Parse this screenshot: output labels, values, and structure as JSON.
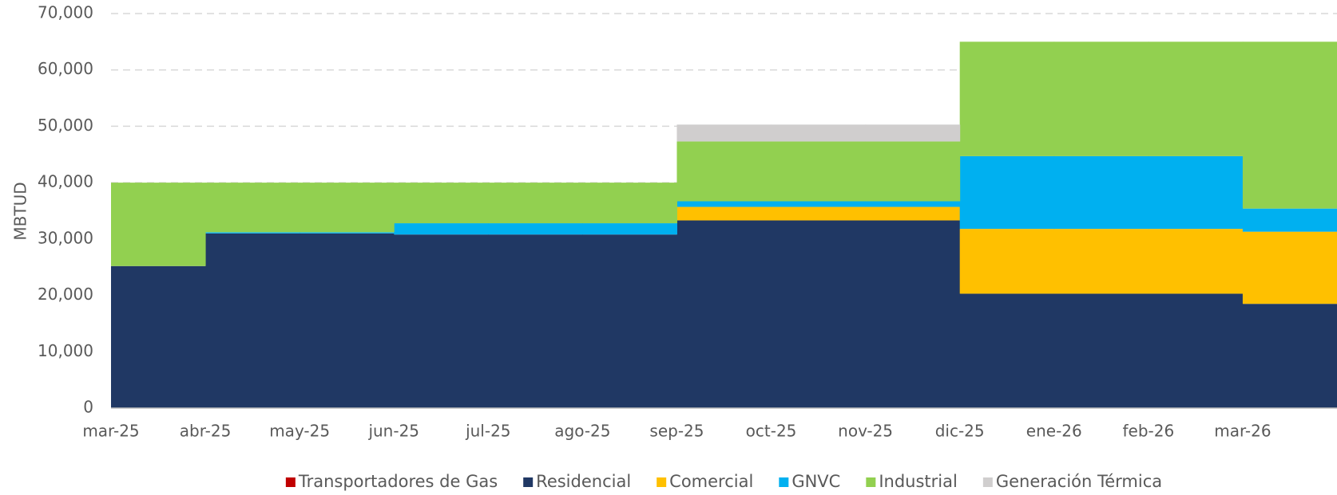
{
  "chart_data": {
    "type": "stacked-step-area",
    "y_label": "MBTUD",
    "categories": [
      "mar-25",
      "abr-25",
      "may-25",
      "jun-25",
      "jul-25",
      "ago-25",
      "sep-25",
      "oct-25",
      "nov-25",
      "dic-25",
      "ene-26",
      "feb-26",
      "mar-26"
    ],
    "series": [
      {
        "name": "Transportadores de Gas",
        "color": "#c00000",
        "values": [
          0,
          0,
          0,
          0,
          0,
          0,
          0,
          0,
          0,
          0,
          0,
          0,
          0
        ]
      },
      {
        "name": "Residencial",
        "color": "#203864",
        "values": [
          25200,
          31000,
          31000,
          30800,
          30800,
          30800,
          33300,
          33300,
          33300,
          20300,
          20300,
          20300,
          18500
        ]
      },
      {
        "name": "Comercial",
        "color": "#ffc000",
        "values": [
          0,
          0,
          0,
          0,
          0,
          0,
          2400,
          2400,
          2400,
          11500,
          11500,
          11500,
          12800
        ]
      },
      {
        "name": "GNVC",
        "color": "#00b0f0",
        "values": [
          0,
          200,
          200,
          2000,
          2000,
          2000,
          1000,
          1000,
          1000,
          12900,
          12900,
          12900,
          4100
        ]
      },
      {
        "name": "Industrial",
        "color": "#92d050",
        "values": [
          14800,
          8800,
          8800,
          7200,
          7200,
          7200,
          10600,
          10600,
          10600,
          20300,
          20300,
          20300,
          29600
        ]
      },
      {
        "name": "Generación Térmica",
        "color": "#d0cece",
        "values": [
          0,
          0,
          0,
          0,
          0,
          0,
          3000,
          3000,
          3000,
          0,
          0,
          0,
          0
        ]
      }
    ],
    "ylim": [
      0,
      70000
    ],
    "yticks": [
      0,
      {
        "value": 10000,
        "label": "10,000"
      },
      {
        "value": 20000,
        "label": "20,000"
      },
      {
        "value": 30000,
        "label": "30,000"
      },
      {
        "value": 40000,
        "label": "40,000"
      },
      {
        "value": 50000,
        "label": "50,000"
      },
      {
        "value": 60000,
        "label": "60,000"
      },
      {
        "value": 70000,
        "label": "70,000"
      }
    ],
    "grid": true,
    "legend": "bottom"
  }
}
